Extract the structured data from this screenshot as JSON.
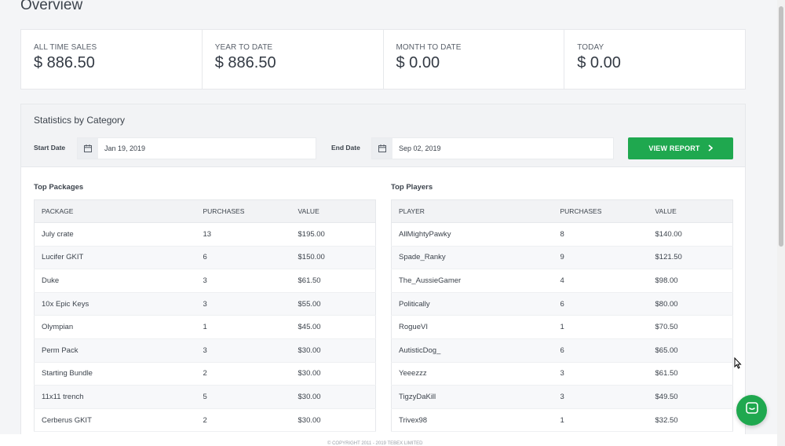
{
  "page": {
    "title": "Overview"
  },
  "stats": [
    {
      "label": "ALL TIME SALES",
      "value": "$ 886.50"
    },
    {
      "label": "YEAR TO DATE",
      "value": "$ 886.50"
    },
    {
      "label": "MONTH TO DATE",
      "value": "$ 0.00"
    },
    {
      "label": "TODAY",
      "value": "$ 0.00"
    }
  ],
  "category": {
    "title": "Statistics by Category",
    "start_label": "Start Date",
    "start_value": "Jan 19, 2019",
    "end_label": "End Date",
    "end_value": "Sep 02, 2019",
    "report_button": "VIEW REPORT"
  },
  "top_packages": {
    "title": "Top Packages",
    "headers": [
      "PACKAGE",
      "PURCHASES",
      "VALUE"
    ],
    "rows": [
      [
        "July crate",
        "13",
        "$195.00"
      ],
      [
        "Lucifer GKIT",
        "6",
        "$150.00"
      ],
      [
        "Duke",
        "3",
        "$61.50"
      ],
      [
        "10x Epic Keys",
        "3",
        "$55.00"
      ],
      [
        "Olympian",
        "1",
        "$45.00"
      ],
      [
        "Perm Pack",
        "3",
        "$30.00"
      ],
      [
        "Starting Bundle",
        "2",
        "$30.00"
      ],
      [
        "11x11 trench",
        "5",
        "$30.00"
      ],
      [
        "Cerberus GKIT",
        "2",
        "$30.00"
      ]
    ]
  },
  "top_players": {
    "title": "Top Players",
    "headers": [
      "PLAYER",
      "PURCHASES",
      "VALUE"
    ],
    "rows": [
      [
        "AllMightyPawky",
        "8",
        "$140.00"
      ],
      [
        "Spade_Ranky",
        "9",
        "$121.50"
      ],
      [
        "The_AussieGamer",
        "4",
        "$98.00"
      ],
      [
        "Politically",
        "6",
        "$80.00"
      ],
      [
        "RogueVI",
        "1",
        "$70.50"
      ],
      [
        "AutisticDog_",
        "6",
        "$65.00"
      ],
      [
        "Yeeezzz",
        "3",
        "$61.50"
      ],
      [
        "TigzyDaKill",
        "3",
        "$49.50"
      ],
      [
        "Trivex98",
        "1",
        "$32.50"
      ]
    ]
  },
  "footer": {
    "copyright": "© COPYRIGHT 2011 - 2019 TEBEX LIMITED"
  },
  "icons": {
    "calendar": "calendar-icon",
    "chevron": "chevron-right-icon",
    "chat": "chat-icon",
    "cursor": "mouse-cursor-icon"
  },
  "colors": {
    "accent": "#1fa84f",
    "header_bg": "#f2f3f5",
    "background": "#f4f5f7"
  }
}
